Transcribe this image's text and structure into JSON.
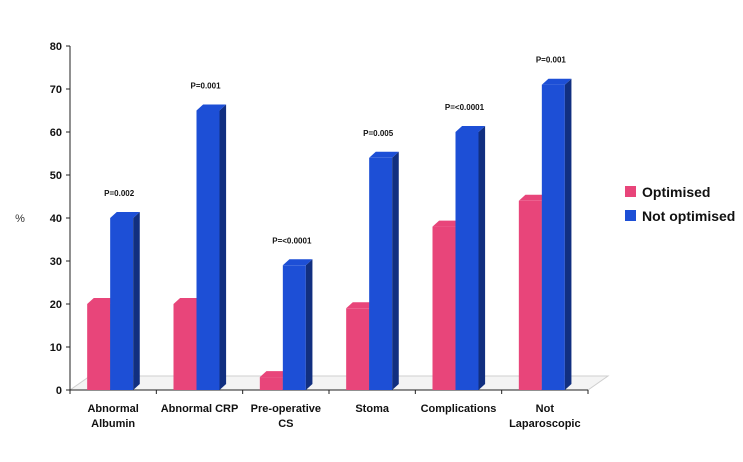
{
  "chart_data": {
    "type": "bar",
    "ylabel": "%",
    "ylim": [
      0,
      80
    ],
    "yticks": [
      0,
      10,
      20,
      30,
      40,
      50,
      60,
      70,
      80
    ],
    "categories": [
      [
        "Abnormal",
        "Albumin"
      ],
      [
        "Abnormal CRP"
      ],
      [
        "Pre-operative",
        "CS"
      ],
      [
        "Stoma"
      ],
      [
        "Complications"
      ],
      [
        "Not",
        "Laparoscopic"
      ]
    ],
    "series": [
      {
        "name": "Optimised",
        "color": "#e8457a",
        "values": [
          20,
          20,
          3,
          19,
          38,
          44
        ]
      },
      {
        "name": "Not optimised",
        "color": "#1d4fd6",
        "values": [
          40,
          65,
          29,
          54,
          60,
          71
        ]
      }
    ],
    "annotations": [
      "P=0.002",
      "P=0.001",
      "P=<0.0001",
      "P=0.005",
      "P=<0.0001",
      "P=0.001"
    ],
    "legend": "right",
    "grid": false
  }
}
